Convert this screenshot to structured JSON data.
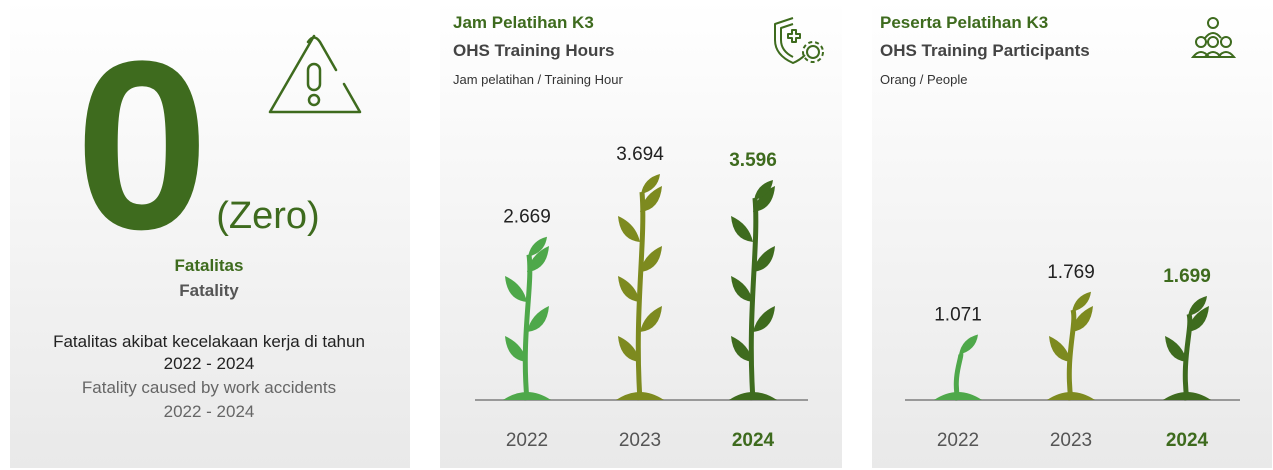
{
  "fatality_panel": {
    "value": 0,
    "value_caption": "(Zero)",
    "title_id": "Fatalitas",
    "title_en": "Fatality",
    "description_id": "Fatalitas akibat kecelakaan  kerja di tahun",
    "period_id": "2022 - 2024",
    "description_en": "Fatality caused by work accidents",
    "period_en": "2022 - 2024"
  },
  "chart_data": [
    {
      "type": "bar",
      "title": "Jam Pelatihan K3",
      "subtitle": "OHS Training Hours",
      "unit": "Jam pelatihan / Training Hour",
      "categories": [
        "2022",
        "2023",
        "2024"
      ],
      "values": [
        2669,
        3694,
        3596
      ],
      "value_labels": [
        "2.669",
        "3.694",
        "3.596"
      ],
      "colors": [
        "#4ea84a",
        "#7d8a1f",
        "#3e6b1e"
      ]
    },
    {
      "type": "bar",
      "title": "Peserta Pelatihan K3",
      "subtitle": "OHS Training Participants",
      "unit": "Orang / People",
      "categories": [
        "2022",
        "2023",
        "2024"
      ],
      "values": [
        1071,
        1769,
        1699
      ],
      "value_labels": [
        "1.071",
        "1.769",
        "1.699"
      ],
      "colors": [
        "#4ea84a",
        "#7d8a1f",
        "#3e6b1e"
      ]
    }
  ]
}
